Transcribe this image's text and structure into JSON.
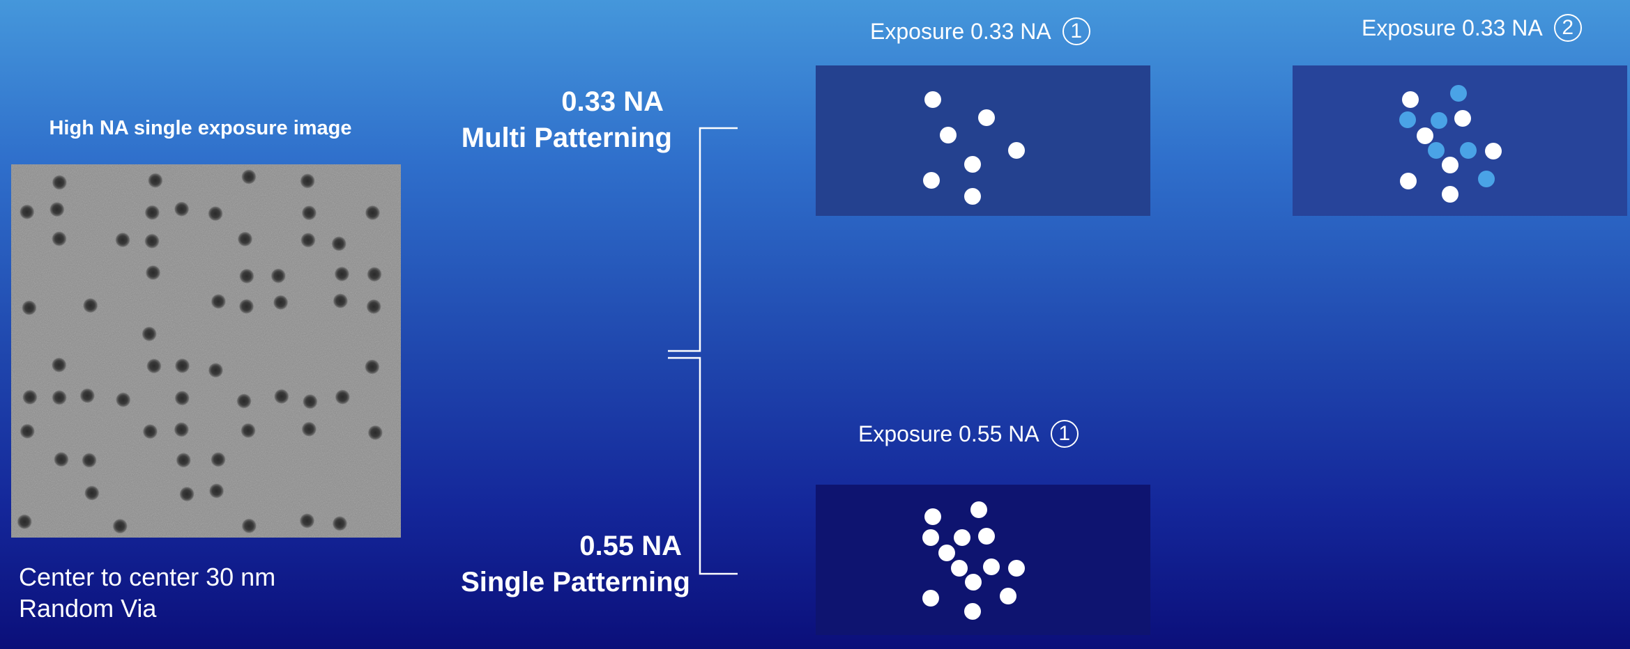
{
  "sem_image": {
    "caption_top": "High NA single exposure image",
    "caption_lines": [
      "Center to center 30 nm",
      "Random Via"
    ]
  },
  "options": {
    "multi": {
      "line1": "0.33 NA",
      "line2": "Multi Patterning"
    },
    "single": {
      "line1": "0.55 NA",
      "line2": "Single Patterning"
    }
  },
  "exposures": [
    {
      "label": "Exposure 0.33 NA",
      "number": "1"
    },
    {
      "label": "Exposure 0.33 NA",
      "number": "2"
    },
    {
      "label": "Exposure 0.55 NA",
      "number": "1"
    }
  ],
  "colors": {
    "dot_primary": "#ffffff",
    "dot_second_exposure": "#4aa3e6",
    "panel_033": "#24418f",
    "panel_055": "#0e1470"
  }
}
